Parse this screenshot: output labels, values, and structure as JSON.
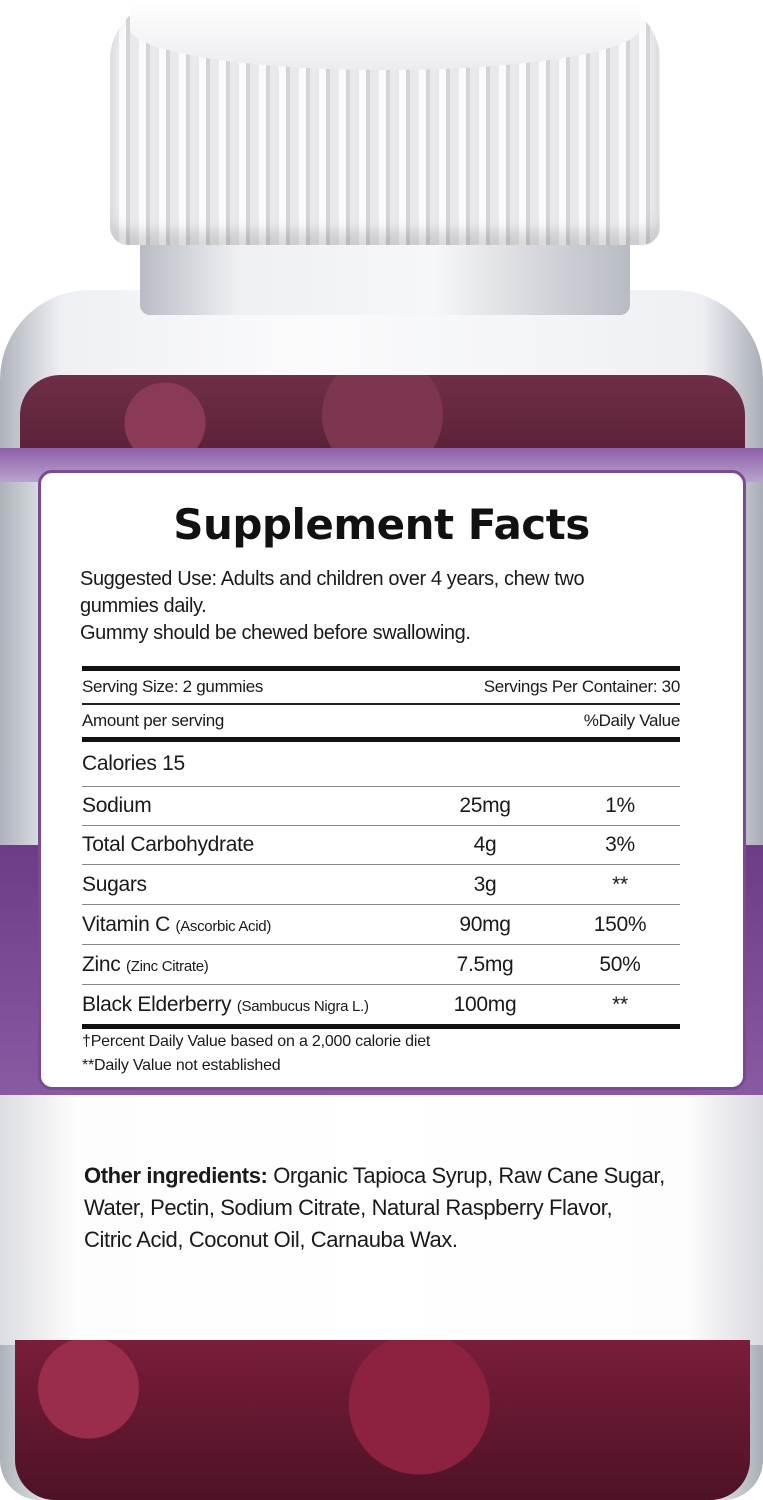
{
  "label": {
    "title": "Supplement Facts",
    "suggested_use": [
      "Suggested Use:  Adults and children over 4 years, chew two",
      "gummies daily.",
      "Gummy should be chewed before swallowing."
    ],
    "serving_size": "Serving Size: 2 gummies",
    "servings_per_container": "Servings Per Container: 30",
    "amount_per_serving": "Amount per serving",
    "daily_value_header": "%Daily Value",
    "calories": "Calories 15",
    "rows": [
      {
        "name": "Sodium",
        "detail": "",
        "amount": "25mg",
        "dv": "1%"
      },
      {
        "name": "Total Carbohydrate",
        "detail": "",
        "amount": "4g",
        "dv": "3%"
      },
      {
        "name": "Sugars",
        "detail": "",
        "amount": "3g",
        "dv": "**"
      },
      {
        "name": "Vitamin C",
        "detail": "(Ascorbic Acid)",
        "amount": "90mg",
        "dv": "150%"
      },
      {
        "name": "Zinc",
        "detail": "(Zinc Citrate)",
        "amount": "7.5mg",
        "dv": "50%"
      },
      {
        "name": "Black Elderberry",
        "detail": "(Sambucus Nigra L.)",
        "amount": "100mg",
        "dv": "**"
      }
    ],
    "footnotes": [
      "†Percent Daily Value based on a 2,000 calorie diet",
      "**Daily Value not established"
    ]
  },
  "other_ingredients": {
    "heading": "Other ingredients:",
    "lines": [
      " Organic Tapioca Syrup, Raw Cane Sugar,",
      "Water, Pectin, Sodium Citrate, Natural Raspberry Flavor,",
      "Citric Acid, Coconut Oil, Carnauba Wax."
    ]
  },
  "colors": {
    "label_purple": "#7a4a93",
    "gummy": "#6f2e47"
  }
}
